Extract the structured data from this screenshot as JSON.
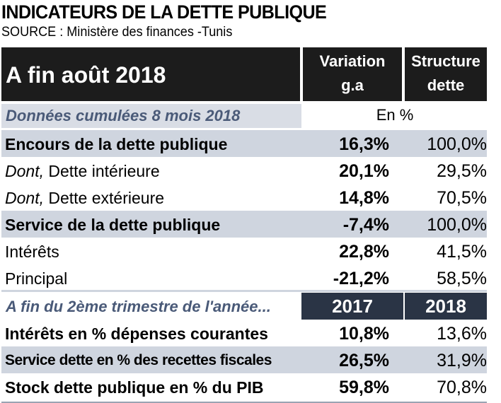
{
  "title": "INDICATEURS DE LA DETTE PUBLIQUE",
  "source": "SOURCE : Ministère des finances  -Tunis",
  "header": {
    "period": "A fin août 2018",
    "col1_line1": "Variation",
    "col1_line2": "g.a",
    "col2_line1": "Structure",
    "col2_line2": "dette"
  },
  "section1": {
    "label": "Données cumulées 8 mois 2018",
    "unit": "En %",
    "rows": [
      {
        "label": "Encours de la dette publique",
        "v1": "16,3%",
        "v2": "100,0%"
      },
      {
        "label_prefix": "Dont,",
        "label": " Dette intérieure",
        "v1": "20,1%",
        "v2": "29,5%"
      },
      {
        "label_prefix": "Dont,",
        "label": " Dette extérieure",
        "v1": "14,8%",
        "v2": "70,5%"
      },
      {
        "label": "Service de la dette publique",
        "v1": "-7,4%",
        "v2": "100,0%"
      },
      {
        "label": "Intérêts",
        "v1": "22,8%",
        "v2": "41,5%"
      },
      {
        "label": "Principal",
        "v1": "-21,2%",
        "v2": "58,5%"
      }
    ]
  },
  "section2": {
    "label": "A fin du 2ème trimestre de l'année...",
    "year1": "2017",
    "year2": "2018",
    "rows": [
      {
        "label": "Intérêts en % dépenses courantes",
        "v1": "10,8%",
        "v2": "13,6%"
      },
      {
        "label": "Service dette en % des recettes fiscales",
        "v1": "26,5%",
        "v2": "31,9%"
      },
      {
        "label": "Stock dette publique en % du PIB",
        "v1": "59,8%",
        "v2": "70,8%"
      }
    ]
  }
}
